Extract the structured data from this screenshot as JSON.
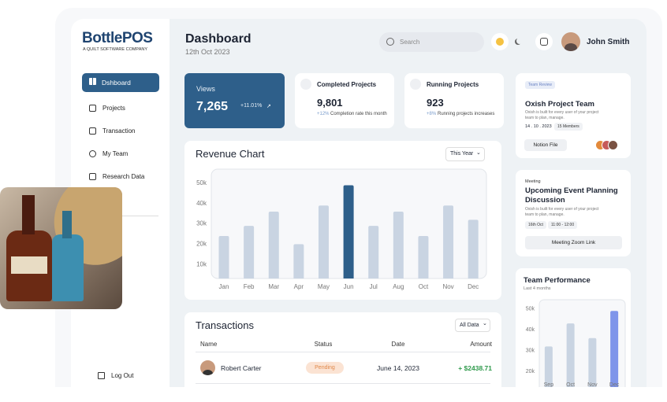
{
  "brand": {
    "name": "BottlePOS",
    "tagline": "A QUILT SOFTWARE COMPANY"
  },
  "nav": {
    "items": [
      "Dshboard",
      "Projects",
      "Transaction",
      "My Team",
      "Research Data"
    ],
    "logout": "Log Out"
  },
  "header": {
    "title": "Dashboard",
    "date": "12th Oct 2023",
    "search_placeholder": "Search",
    "user": "John Smith"
  },
  "stats": [
    {
      "label": "Views",
      "value": "7,265",
      "change": "+11.01%"
    },
    {
      "label": "Completed Projects",
      "value": "9,801",
      "change": "+12%",
      "note": "Completion rate this month"
    },
    {
      "label": "Running Projects",
      "value": "923",
      "change": "+8%",
      "note": "Running projects increases"
    }
  ],
  "chart_data": [
    {
      "type": "bar",
      "title": "Revenue Chart",
      "filter": "This Year",
      "categories": [
        "Jan",
        "Feb",
        "Mar",
        "Apr",
        "May",
        "Jun",
        "Jul",
        "Aug",
        "Oct",
        "Nov",
        "Dec"
      ],
      "values": [
        24000,
        29000,
        36000,
        20000,
        39000,
        49000,
        29000,
        36000,
        24000,
        39000,
        32000
      ],
      "colors": [
        "#c9d4e2",
        "#c9d4e2",
        "#c9d4e2",
        "#c9d4e2",
        "#c9d4e2",
        "#2e5f8a",
        "#c9d4e2",
        "#c9d4e2",
        "#c9d4e2",
        "#c9d4e2",
        "#c9d4e2"
      ],
      "ylim": [
        0,
        55000
      ],
      "yticks": [
        {
          "value": 10000,
          "label": "10k"
        },
        {
          "value": 20000,
          "label": "20k"
        },
        {
          "value": 30000,
          "label": "30k"
        },
        {
          "value": 40000,
          "label": "40k"
        },
        {
          "value": 50000,
          "label": "50k"
        }
      ],
      "grid": false
    },
    {
      "type": "bar",
      "title": "Team Performance",
      "subtitle": "Last 4 months",
      "categories": [
        "Sep",
        "Oct",
        "Nov",
        "Dec"
      ],
      "values": [
        32000,
        43000,
        36000,
        49000
      ],
      "colors": [
        "#c9d4e2",
        "#c9d4e2",
        "#c9d4e2",
        "#7f95ea"
      ],
      "ylim": [
        10000,
        55000
      ],
      "yticks": [
        {
          "value": 20000,
          "label": "20k"
        },
        {
          "value": 30000,
          "label": "30k"
        },
        {
          "value": 40000,
          "label": "40k"
        },
        {
          "value": 50000,
          "label": "50k"
        }
      ],
      "grid": false
    }
  ],
  "transactions": {
    "title": "Transactions",
    "filter": "All Data",
    "columns": [
      "Name",
      "Status",
      "Date",
      "Amount"
    ],
    "rows": [
      [
        "Robert Carter",
        "Pending",
        "June 14, 2023",
        "+ $2438.71"
      ]
    ]
  },
  "cards": [
    {
      "tag": "Team Review",
      "title": "Oxish Project Team",
      "description": "Oxish is built for every user of your project team to plan, manage.",
      "date": "14 . 10 . 2023",
      "members": "15 Members",
      "button": "Notion File"
    },
    {
      "tag": "Meeting",
      "title": "Upcoming Event Planning Discussion",
      "description": "Oxish is built for every user of your project team to plan, manage.",
      "date": "16th Oct",
      "time": "11:00 - 12:00",
      "button": "Meeting Zoom Link"
    }
  ]
}
